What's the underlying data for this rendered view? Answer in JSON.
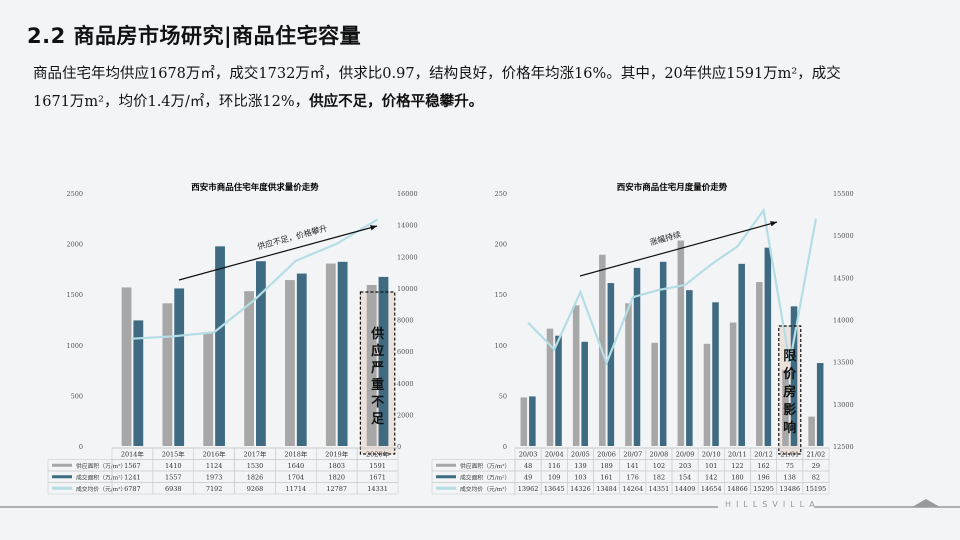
{
  "header": {
    "title": "2.2 商品房市场研究|商品住宅容量"
  },
  "summary": {
    "line1": "商品住宅年均供应1678万㎡，成交1732万㎡，供求比0.97，结构良好，价格年均涨16%。其中，20年供应1591万m²，成交",
    "line2_plain": "1671万m²，均价1.4万/㎡，环比涨12%，",
    "line2_bold": "供应不足，价格平稳攀升。"
  },
  "colors": {
    "supply": "#a7a7a7",
    "deal": "#3f6b82",
    "price": "#b5dde6",
    "background": "#f3f4f6"
  },
  "chart_data": [
    {
      "type": "bar",
      "title": "西安市商品住宅年度供求量价走势",
      "categories": [
        "2014年",
        "2015年",
        "2016年",
        "2017年",
        "2018年",
        "2019年",
        "2020年"
      ],
      "series": [
        {
          "name": "供应面积（万/m²）",
          "kind": "bar",
          "axis": "left",
          "values": [
            1567,
            1410,
            1124,
            1530,
            1640,
            1803,
            1591
          ]
        },
        {
          "name": "成交面积（万/m²）",
          "kind": "bar",
          "axis": "left",
          "values": [
            1241,
            1557,
            1973,
            1826,
            1704,
            1820,
            1671
          ]
        },
        {
          "name": "成交均价（元/m²）",
          "kind": "line",
          "axis": "right",
          "values": [
            6787,
            6938,
            7192,
            9268,
            11714,
            12787,
            14331
          ]
        }
      ],
      "ylim_left": [
        0,
        2500
      ],
      "yticks_left": [
        "0",
        "500",
        "1000",
        "1500",
        "2000",
        "2500"
      ],
      "ylim_right": [
        0,
        16000
      ],
      "yticks_right": [
        "0",
        "2000",
        "4000",
        "6000",
        "8000",
        "10000",
        "12000",
        "14000",
        "16000"
      ],
      "annotations": [
        {
          "text": "供应不足，价格攀升",
          "type": "arrow"
        },
        {
          "text": "供应严重不足",
          "type": "highlight-box",
          "category": "2020年"
        }
      ],
      "legend_position": "data-table",
      "grid": false
    },
    {
      "type": "bar",
      "title": "西安市商品住宅月度量价走势",
      "categories": [
        "20/03",
        "20/04",
        "20/05",
        "20/06",
        "20/07",
        "20/08",
        "20/09",
        "20/10",
        "20/11",
        "20/12",
        "21/01",
        "21/02"
      ],
      "series": [
        {
          "name": "供应面积（万/m²）",
          "kind": "bar",
          "axis": "left",
          "values": [
            48,
            116,
            139,
            189,
            141,
            102,
            203,
            101,
            122,
            162,
            75,
            29
          ]
        },
        {
          "name": "成交面积（万/m²）",
          "kind": "bar",
          "axis": "left",
          "values": [
            49,
            109,
            103,
            161,
            176,
            182,
            154,
            142,
            180,
            196,
            138,
            82
          ]
        },
        {
          "name": "成交均价（元/m²）",
          "kind": "line",
          "axis": "right",
          "values": [
            13962,
            13645,
            14326,
            13484,
            14264,
            14351,
            14409,
            14654,
            14866,
            15295,
            13486,
            15195
          ]
        }
      ],
      "ylim_left": [
        0,
        250
      ],
      "yticks_left": [
        "0",
        "50",
        "100",
        "150",
        "200",
        "250"
      ],
      "ylim_right": [
        12500,
        15500
      ],
      "yticks_right": [
        "12500",
        "13000",
        "13500",
        "14000",
        "14500",
        "15000",
        "15500"
      ],
      "annotations": [
        {
          "text": "涨幅持续",
          "type": "arrow"
        },
        {
          "text": "限价房影响",
          "type": "highlight-box",
          "category": "21/01"
        }
      ],
      "legend_position": "data-table",
      "grid": false
    }
  ],
  "footer": {
    "brand": "HILLSVILLA"
  }
}
